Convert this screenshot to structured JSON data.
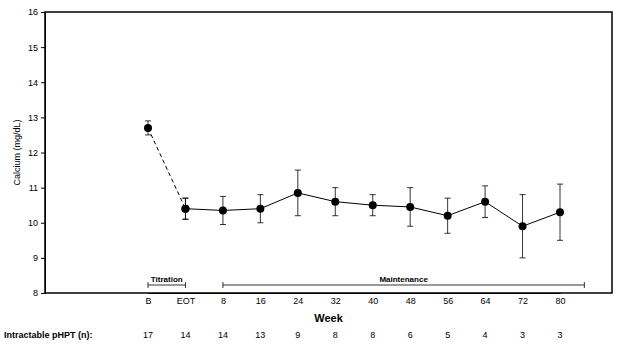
{
  "chart_data": {
    "type": "line",
    "y_label": "Calcium (mg/dL)",
    "x_label": "Week",
    "categories": [
      "B",
      "EOT",
      "8",
      "16",
      "24",
      "32",
      "40",
      "48",
      "56",
      "64",
      "72",
      "80"
    ],
    "ylim": [
      8,
      16
    ],
    "yticks": [
      8,
      9,
      10,
      11,
      12,
      13,
      14,
      15,
      16
    ],
    "series": [
      {
        "values": [
          12.7,
          10.4,
          null,
          null,
          null,
          null,
          null,
          null,
          null,
          null,
          null,
          null
        ],
        "errors": [
          0.2,
          0.3,
          null,
          null,
          null,
          null,
          null,
          null,
          null,
          null,
          null,
          null
        ],
        "color": "#000000",
        "line_style": "dashed",
        "marker": "circle"
      },
      {
        "values": [
          null,
          10.4,
          10.35,
          10.4,
          10.85,
          10.6,
          10.5,
          10.45,
          10.2,
          10.6,
          9.9,
          10.3
        ],
        "errors": [
          null,
          0.3,
          0.4,
          0.4,
          0.65,
          0.4,
          0.3,
          0.55,
          0.5,
          0.45,
          0.9,
          0.8
        ],
        "color": "#000000",
        "line_style": "solid",
        "marker": "circle"
      }
    ],
    "annotations": [
      {
        "text": "Titration",
        "start": "B",
        "end": "EOT"
      },
      {
        "text": "Maintenance",
        "start": "8",
        "end": "80"
      }
    ],
    "n_label": "Intractable pHPT (n):",
    "n_values": [
      17,
      14,
      14,
      13,
      9,
      8,
      8,
      6,
      5,
      4,
      3,
      3
    ]
  }
}
